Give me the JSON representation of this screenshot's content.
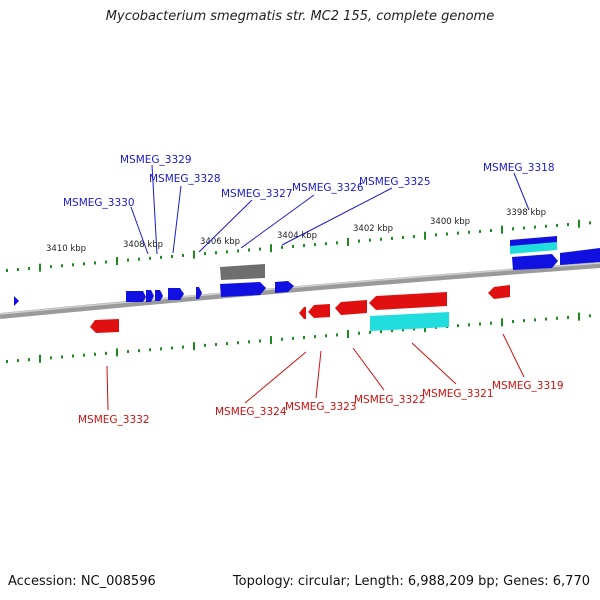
{
  "title": "Mycobacterium smegmatis str. MC2 155, complete genome",
  "footer": {
    "accession": "Accession: NC_008596",
    "summary": "Topology: circular; Length: 6,988,209 bp; Genes: 6,770"
  },
  "colors": {
    "forward": "#1010e0",
    "reverse": "#e01010",
    "rna": "#22dddd",
    "other": "#6e6e6e",
    "tick": "#1f8a1f",
    "label_forward": "#1a1acc",
    "label_reverse": "#cc1111"
  },
  "kbp_ticks": [
    "3410 kbp",
    "3408 kbp",
    "3406 kbp",
    "3404 kbp",
    "3402 kbp",
    "3400 kbp",
    "3398 kbp"
  ],
  "forward_labels": [
    "MSMEG_3330",
    "MSMEG_3329",
    "MSMEG_3328",
    "MSMEG_3327",
    "MSMEG_3326",
    "MSMEG_3325",
    "MSMEG_3318"
  ],
  "reverse_labels": [
    "MSMEG_3332",
    "MSMEG_3324",
    "MSMEG_3323",
    "MSMEG_3322",
    "MSMEG_3321",
    "MSMEG_3319"
  ]
}
